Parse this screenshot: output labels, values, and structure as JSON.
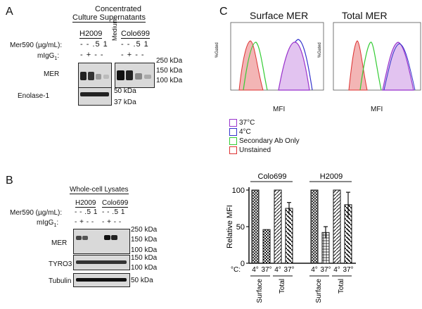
{
  "panelA": {
    "letter": "A",
    "title_line1": "Concentrated",
    "title_line2": "Culture Supernatants",
    "cell_line1": "H2009",
    "cell_line2": "Colo699",
    "medium": "Medium",
    "mer590_label": "Mer590 (µg/mL):",
    "mer590_values1": "- - .5 1",
    "mer590_values2": "- - .5 1",
    "migg_label": "mIgG",
    "migg_sub": "1",
    "migg_values1": "- + - -",
    "migg_values2": "- + - -",
    "row_mer": "MER",
    "row_enolase": "Enolase-1",
    "mw_250": "250 kDa",
    "mw_150": "150 kDa",
    "mw_100": "100 kDa",
    "mw_50": "50 kDa",
    "mw_37": "37 kDa"
  },
  "panelB": {
    "letter": "B",
    "title": "Whole-cell Lysates",
    "cell_line1": "H2009",
    "cell_line2": "Colo699",
    "mer590_label": "Mer590 (µg/mL):",
    "mer590_values1": "- - .5 1",
    "mer590_values2": "- - .5 1",
    "migg_label": "mIgG",
    "migg_sub": "1",
    "migg_values1": "- + - -",
    "migg_values2": "- + - -",
    "row_mer": "MER",
    "row_tyro3": "TYRO3",
    "row_tubulin": "Tubulin",
    "mw_250": "250 kDa",
    "mw_150": "150 kDa",
    "mw_100": "100 kDa",
    "mw_50": "50 kDa"
  },
  "panelC": {
    "letter": "C",
    "title_surface": "Surface MER",
    "title_total": "Total MER",
    "x_label": "MFI",
    "y_label": "%Gated",
    "legend": [
      {
        "label": "37°C",
        "color": "#9933cc"
      },
      {
        "label": "4°C",
        "color": "#3333cc"
      },
      {
        "label": "Secondary Ab Only",
        "color": "#33cc33"
      },
      {
        "label": "Unstained",
        "color": "#dd3333"
      }
    ]
  },
  "chart_data": {
    "type": "bar",
    "ylabel": "Relative MFI",
    "ylim": [
      0,
      100
    ],
    "yticks": [
      0,
      50,
      100
    ],
    "group_labels": [
      "Colo699",
      "H2009"
    ],
    "x_prefix": "°C:",
    "categories": [
      "4°",
      "37°",
      "4°",
      "37°",
      "4°",
      "37°",
      "4°",
      "37°"
    ],
    "subgroups": [
      "Surface",
      "Total",
      "Surface",
      "Total"
    ],
    "values": [
      100,
      46,
      100,
      75,
      100,
      42,
      100,
      80
    ],
    "errors": [
      0,
      0,
      0,
      8,
      0,
      8,
      0,
      17
    ],
    "patterns": [
      "cross",
      "check",
      "diag",
      "diagrev",
      "cross",
      "grid",
      "diag",
      "diagrev"
    ]
  }
}
